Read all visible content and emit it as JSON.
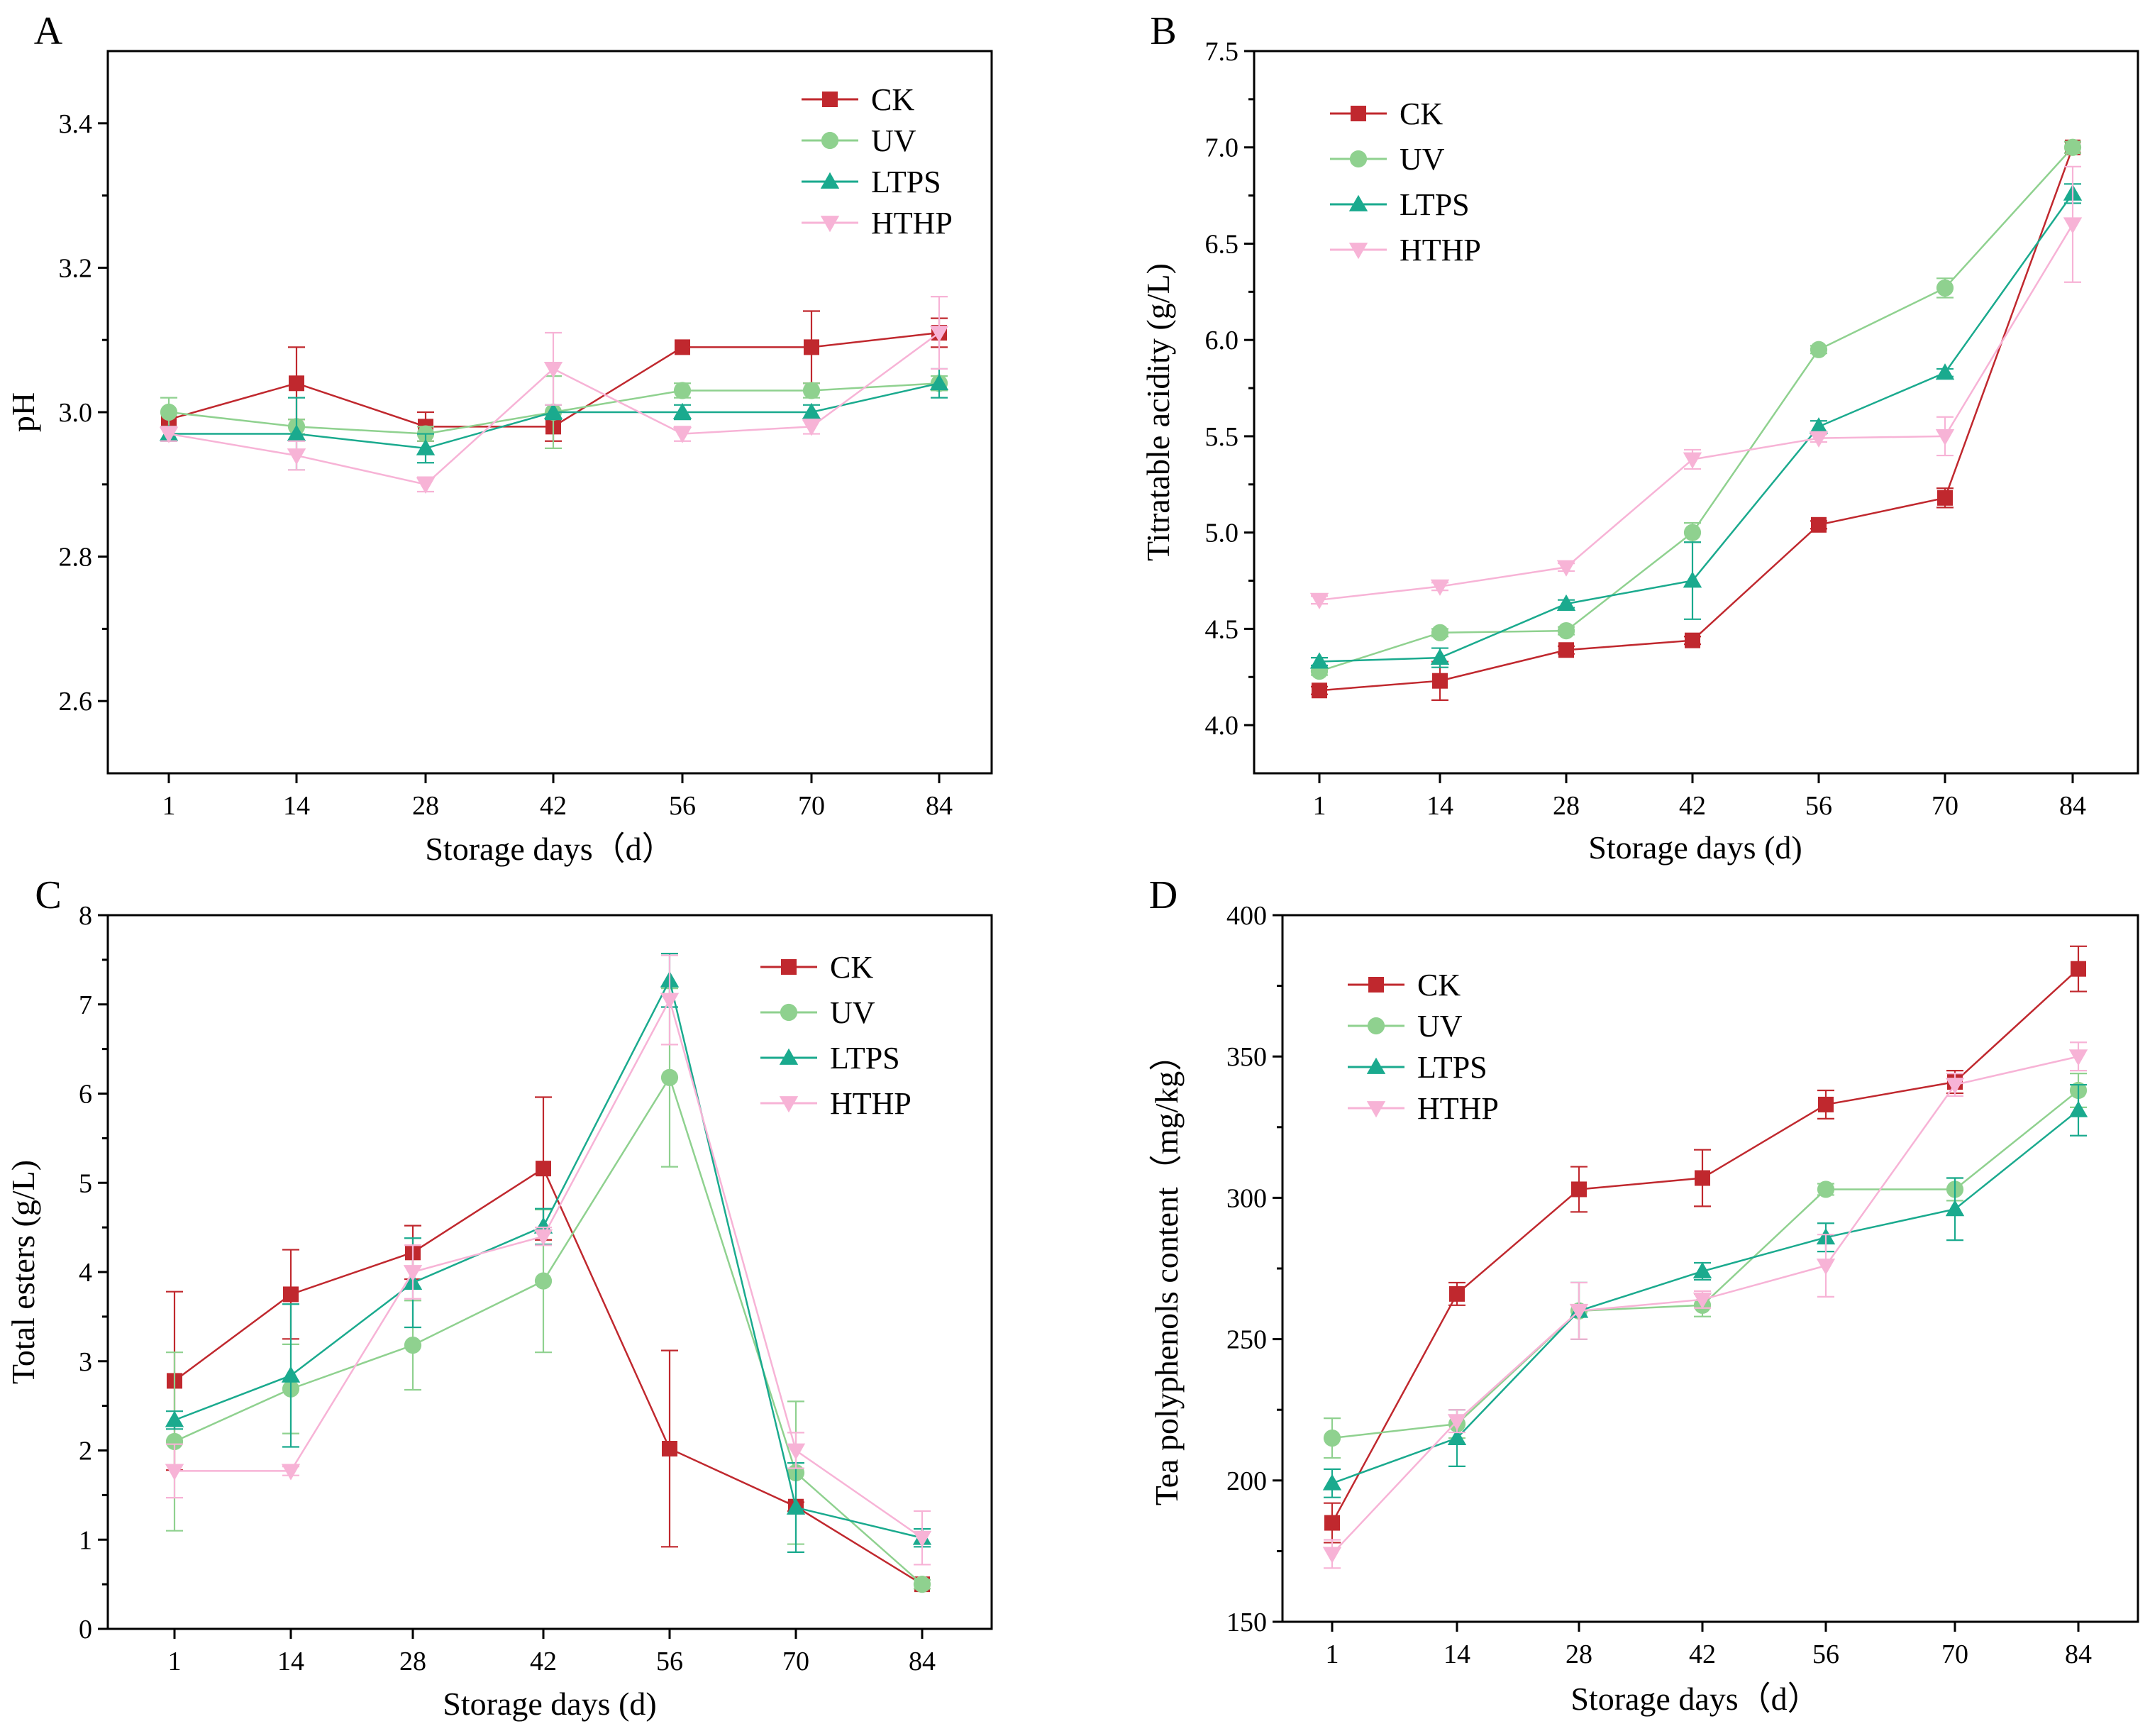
{
  "figure": {
    "colors": {
      "CK": "#c0282e",
      "UV": "#8fd18f",
      "LTPS": "#1aaa8e",
      "HTHP": "#f7b3d6"
    },
    "series_names": [
      "CK",
      "UV",
      "LTPS",
      "HTHP"
    ],
    "series_markers": {
      "CK": "square",
      "UV": "circle",
      "LTPS": "triangle-up",
      "HTHP": "triangle-down"
    }
  },
  "chart_data": [
    {
      "panel": "A",
      "type": "line",
      "categories": [
        "1",
        "14",
        "28",
        "42",
        "56",
        "70",
        "84"
      ],
      "xlabel": "Storage days（d）",
      "ylabel": "pH",
      "ylim": [
        2.5,
        3.5
      ],
      "yticks": [
        "2.6",
        "2.8",
        "3.0",
        "3.2",
        "3.4"
      ],
      "ytick_values": [
        2.6,
        2.8,
        3.0,
        3.2,
        3.4
      ],
      "legend_position": "top-right",
      "series": [
        {
          "name": "CK",
          "values": [
            2.99,
            3.04,
            2.98,
            2.98,
            3.09,
            3.09,
            3.11
          ],
          "errors": [
            0.01,
            0.05,
            0.02,
            0.02,
            0.0,
            0.05,
            0.02
          ]
        },
        {
          "name": "UV",
          "values": [
            3.0,
            2.98,
            2.97,
            3.0,
            3.03,
            3.03,
            3.04
          ],
          "errors": [
            0.02,
            0.01,
            0.01,
            0.05,
            0.01,
            0.01,
            0.01
          ]
        },
        {
          "name": "LTPS",
          "values": [
            2.97,
            2.97,
            2.95,
            3.0,
            3.0,
            3.0,
            3.04
          ],
          "errors": [
            0.01,
            0.05,
            0.02,
            0.01,
            0.01,
            0.01,
            0.02
          ]
        },
        {
          "name": "HTHP",
          "values": [
            2.97,
            2.94,
            2.9,
            3.06,
            2.97,
            2.98,
            3.11
          ],
          "errors": [
            0.01,
            0.02,
            0.01,
            0.05,
            0.01,
            0.01,
            0.05
          ]
        }
      ]
    },
    {
      "panel": "B",
      "type": "line",
      "categories": [
        "1",
        "14",
        "28",
        "42",
        "56",
        "70",
        "84"
      ],
      "xlabel": "Storage days (d)",
      "ylabel": "Titratable acidity (g/L)",
      "ylim": [
        3.75,
        7.5
      ],
      "yticks": [
        "4.0",
        "4.5",
        "5.0",
        "5.5",
        "6.0",
        "6.5",
        "7.0",
        "7.5"
      ],
      "ytick_values": [
        4.0,
        4.5,
        5.0,
        5.5,
        6.0,
        6.5,
        7.0,
        7.5
      ],
      "legend_position": "top-left",
      "series": [
        {
          "name": "CK",
          "values": [
            4.18,
            4.23,
            4.39,
            4.44,
            5.04,
            5.18,
            7.0
          ],
          "errors": [
            0.02,
            0.1,
            0.02,
            0.02,
            0.02,
            0.05,
            0.03
          ]
        },
        {
          "name": "UV",
          "values": [
            4.28,
            4.48,
            4.49,
            5.0,
            5.95,
            6.27,
            7.0
          ],
          "errors": [
            0.02,
            0.02,
            0.02,
            0.05,
            0.02,
            0.05,
            0.03
          ]
        },
        {
          "name": "LTPS",
          "values": [
            4.33,
            4.35,
            4.63,
            4.75,
            5.55,
            5.83,
            6.76
          ],
          "errors": [
            0.02,
            0.05,
            0.02,
            0.2,
            0.03,
            0.02,
            0.05
          ]
        },
        {
          "name": "HTHP",
          "values": [
            4.65,
            4.72,
            4.82,
            5.38,
            5.49,
            5.5,
            6.6
          ],
          "errors": [
            0.02,
            0.02,
            0.02,
            0.05,
            0.02,
            0.1,
            0.3
          ]
        }
      ]
    },
    {
      "panel": "C",
      "type": "line",
      "categories": [
        "1",
        "14",
        "28",
        "42",
        "56",
        "70",
        "84"
      ],
      "xlabel": "Storage days (d)",
      "ylabel": "Total esters (g/L)",
      "ylim": [
        0,
        8
      ],
      "yticks": [
        "0",
        "1",
        "2",
        "3",
        "4",
        "5",
        "6",
        "7",
        "8"
      ],
      "ytick_values": [
        0,
        1,
        2,
        3,
        4,
        5,
        6,
        7,
        8
      ],
      "legend_position": "top-right",
      "series": [
        {
          "name": "CK",
          "values": [
            2.78,
            3.75,
            4.22,
            5.16,
            2.02,
            1.37,
            0.5
          ],
          "errors": [
            1.0,
            0.5,
            0.3,
            0.8,
            1.1,
            0.05,
            0.05
          ]
        },
        {
          "name": "UV",
          "values": [
            2.1,
            2.69,
            3.18,
            3.9,
            6.18,
            1.75,
            0.5
          ],
          "errors": [
            1.0,
            0.5,
            0.5,
            0.8,
            1.0,
            0.8,
            0.05
          ]
        },
        {
          "name": "LTPS",
          "values": [
            2.34,
            2.84,
            3.88,
            4.51,
            7.27,
            1.36,
            1.02
          ],
          "errors": [
            0.1,
            0.8,
            0.5,
            0.2,
            0.3,
            0.5,
            0.1
          ]
        },
        {
          "name": "HTHP",
          "values": [
            1.77,
            1.77,
            4.0,
            4.4,
            7.05,
            2.0,
            1.02
          ],
          "errors": [
            0.3,
            0.05,
            0.3,
            0.1,
            0.5,
            0.2,
            0.3
          ]
        }
      ]
    },
    {
      "panel": "D",
      "type": "line",
      "categories": [
        "1",
        "14",
        "28",
        "42",
        "56",
        "70",
        "84"
      ],
      "xlabel": "Storage days（d）",
      "ylabel": "Tea polyphenols content（mg/kg）",
      "ylim": [
        150,
        400
      ],
      "yticks": [
        "150",
        "200",
        "250",
        "300",
        "350",
        "400"
      ],
      "ytick_values": [
        150,
        200,
        250,
        300,
        350,
        400
      ],
      "legend_position": "top-left",
      "series": [
        {
          "name": "CK",
          "values": [
            185,
            266,
            303,
            307,
            333,
            341,
            381
          ],
          "errors": [
            7,
            4,
            8,
            10,
            5,
            4,
            8
          ]
        },
        {
          "name": "UV",
          "values": [
            215,
            220,
            260,
            262,
            303,
            303,
            338
          ],
          "errors": [
            7,
            5,
            10,
            4,
            2,
            4,
            6
          ]
        },
        {
          "name": "LTPS",
          "values": [
            199,
            215,
            260,
            274,
            286,
            296,
            331
          ],
          "errors": [
            5,
            10,
            10,
            3,
            5,
            11,
            9
          ]
        },
        {
          "name": "HTHP",
          "values": [
            174,
            221,
            260,
            264,
            276,
            340,
            350
          ],
          "errors": [
            5,
            4,
            10,
            3,
            11,
            4,
            5
          ]
        }
      ]
    }
  ]
}
